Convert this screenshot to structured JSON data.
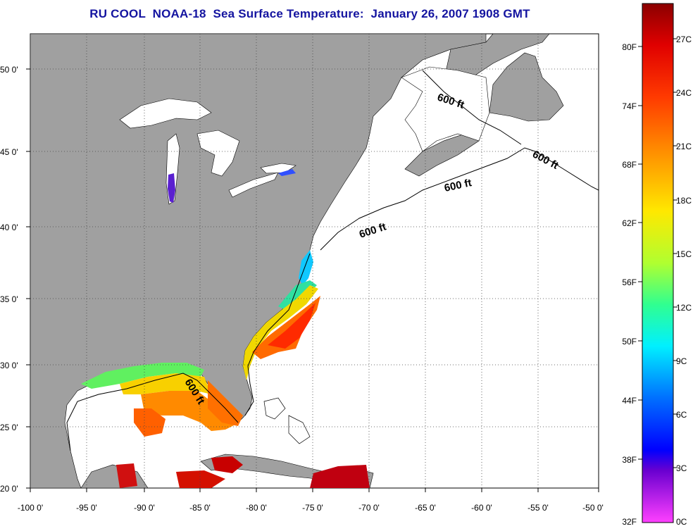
{
  "title": "RU COOL  NOAA-18  Sea Surface Temperature:  January 26, 2007 1908 GMT",
  "map": {
    "lon_range": [
      -100,
      -50
    ],
    "lat_range": [
      20,
      52.5
    ],
    "lon_ticks": [
      "-100 0'",
      "-95 0'",
      "-90 0'",
      "-85 0'",
      "-80 0'",
      "-75 0'",
      "-70 0'",
      "-65 0'",
      "-60 0'",
      "-55 0'",
      "-50 0'"
    ],
    "lat_ticks": [
      "50 0'",
      "45 0'",
      "40 0'",
      "35 0'",
      "30 0'",
      "25 0'",
      "20 0'"
    ],
    "grid": "dotted",
    "land_color": "#a0a0a0",
    "contour_labels": [
      "600 ft",
      "600 ft",
      "600 ft",
      "600 ft",
      "600 ft"
    ]
  },
  "colorbar": {
    "fahrenheit_labels": [
      "80F",
      "74F",
      "68F",
      "62F",
      "56F",
      "50F",
      "44F",
      "38F",
      "32F"
    ],
    "celsius_labels": [
      "27C",
      "24C",
      "21C",
      "18C",
      "15C",
      "12C",
      "9C",
      "6C",
      "3C",
      "0C"
    ],
    "colors": [
      "#8b0000",
      "#ff1a00",
      "#ff8c00",
      "#ffe000",
      "#a0ff20",
      "#20ff80",
      "#00ffff",
      "#0080ff",
      "#0000ff",
      "#8000c0",
      "#ff40ff"
    ]
  }
}
